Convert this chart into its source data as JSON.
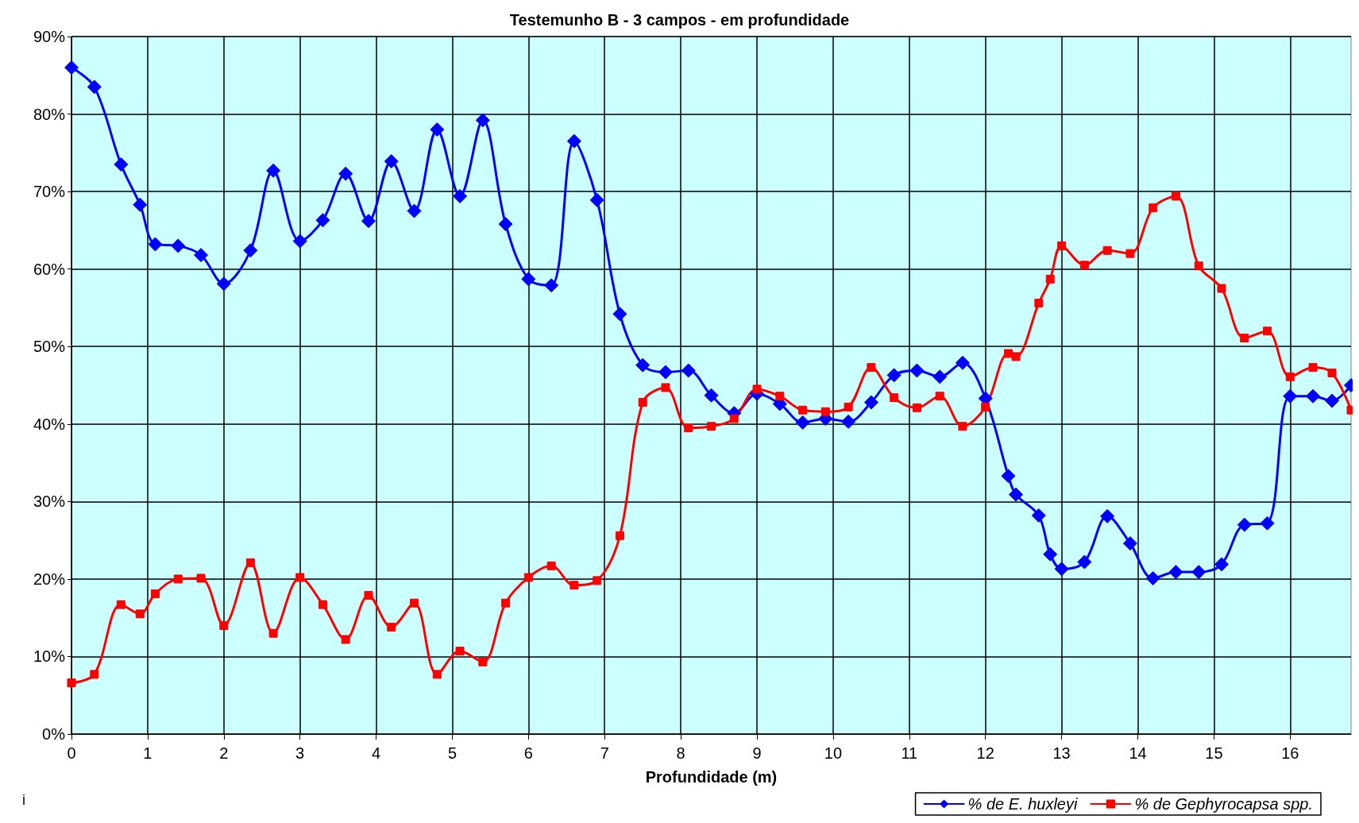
{
  "chart_data": {
    "type": "line",
    "title": "Testemunho B - 3 campos - em profundidade",
    "xlabel": "Profundidade (m)",
    "x": [
      0,
      0.3,
      0.65,
      0.9,
      1.1,
      1.4,
      1.7,
      2.0,
      2.35,
      2.65,
      3.0,
      3.3,
      3.6,
      3.9,
      4.2,
      4.5,
      4.8,
      5.1,
      5.4,
      5.7,
      6.0,
      6.3,
      6.6,
      6.9,
      7.2,
      7.5,
      7.8,
      8.1,
      8.4,
      8.7,
      9.0,
      9.3,
      9.6,
      9.9,
      10.2,
      10.5,
      10.8,
      11.1,
      11.4,
      11.7,
      12.0,
      12.3,
      12.4,
      12.7,
      12.85,
      13.0,
      13.3,
      13.6,
      13.9,
      14.2,
      14.5,
      14.8,
      15.1,
      15.4,
      15.7,
      16.0,
      16.3,
      16.55,
      16.8
    ],
    "series": [
      {
        "name": "% de E. huxleyi",
        "color": "#0000ff",
        "marker": "diamond",
        "values": [
          86,
          83.5,
          73.5,
          68.3,
          63.2,
          63,
          61.8,
          58.1,
          62.4,
          72.7,
          63.6,
          66.3,
          72.3,
          66.2,
          73.9,
          67.5,
          78,
          69.4,
          79.2,
          65.8,
          58.7,
          57.9,
          76.5,
          68.9,
          54.2,
          47.6,
          46.7,
          46.9,
          43.7,
          41.4,
          43.9,
          42.6,
          40.2,
          40.7,
          40.3,
          42.8,
          46.3,
          46.9,
          46.1,
          47.9,
          43.3,
          33.3,
          30.9,
          28.2,
          23.2,
          21.3,
          22.2,
          28.1,
          24.6,
          20.1,
          20.9,
          20.9,
          21.9,
          27,
          27.2,
          43.6,
          43.6,
          43,
          45
        ]
      },
      {
        "name": "% de Gephyrocapsa spp.",
        "color": "#ff0000",
        "marker": "square",
        "values": [
          6.6,
          7.7,
          16.7,
          15.5,
          18.1,
          20,
          20.1,
          14,
          22.1,
          13,
          20.2,
          16.7,
          12.2,
          17.9,
          13.8,
          16.9,
          7.7,
          10.7,
          9.3,
          16.9,
          20.2,
          21.7,
          19.2,
          19.8,
          25.6,
          42.8,
          44.7,
          39.5,
          39.7,
          40.7,
          44.5,
          43.6,
          41.8,
          41.6,
          42.2,
          47.3,
          43.4,
          42.1,
          43.6,
          39.7,
          42.2,
          49.1,
          48.7,
          55.6,
          58.7,
          63,
          60.5,
          62.4,
          62,
          67.9,
          69.4,
          60.4,
          57.5,
          51.1,
          52,
          46.1,
          47.3,
          46.6,
          41.8
        ]
      }
    ],
    "xlim": [
      0,
      16.8
    ],
    "xticks": [
      0,
      1,
      2,
      3,
      4,
      5,
      6,
      7,
      8,
      9,
      10,
      11,
      12,
      13,
      14,
      15,
      16
    ],
    "ylim": [
      0,
      90
    ],
    "yticks": [
      {
        "value": 0,
        "label": "0%"
      },
      {
        "value": 10,
        "label": "10%"
      },
      {
        "value": 20,
        "label": "20%"
      },
      {
        "value": 30,
        "label": "30%"
      },
      {
        "value": 40,
        "label": "40%"
      },
      {
        "value": 50,
        "label": "50%"
      },
      {
        "value": 60,
        "label": "60%"
      },
      {
        "value": 70,
        "label": "70%"
      },
      {
        "value": 80,
        "label": "80%"
      },
      {
        "value": 90,
        "label": "90%"
      }
    ],
    "annotations": [
      "i"
    ],
    "grid": true,
    "legend": "bottom right",
    "line_style": "solid"
  }
}
